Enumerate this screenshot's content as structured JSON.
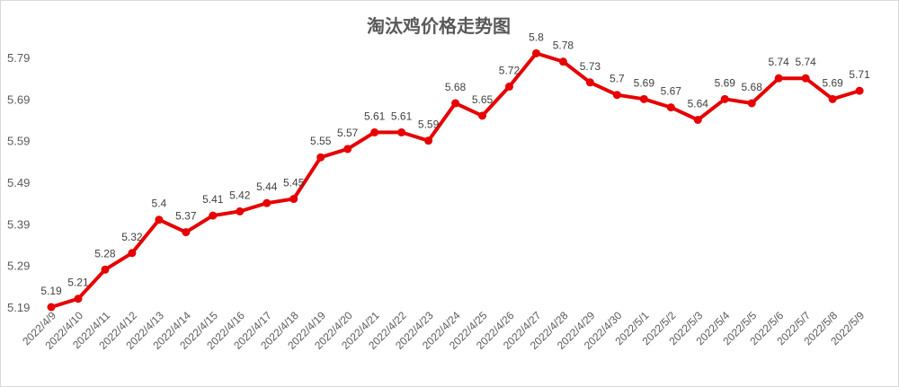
{
  "chart_data": {
    "type": "line",
    "title": "淘汰鸡价格走势图",
    "xlabel": "",
    "ylabel": "",
    "ylim": [
      5.19,
      5.79
    ],
    "yticks": [
      "5.19",
      "5.29",
      "5.39",
      "5.49",
      "5.59",
      "5.69",
      "5.79"
    ],
    "grid": false,
    "legend": "none",
    "line_color": "#e60000",
    "categories": [
      "2022/4/9",
      "2022/4/10",
      "2022/4/11",
      "2022/4/12",
      "2022/4/13",
      "2022/4/14",
      "2022/4/15",
      "2022/4/16",
      "2022/4/17",
      "2022/4/18",
      "2022/4/19",
      "2022/4/20",
      "2022/4/21",
      "2022/4/22",
      "2022/4/23",
      "2022/4/24",
      "2022/4/25",
      "2022/4/26",
      "2022/4/27",
      "2022/4/28",
      "2022/4/29",
      "2022/4/30",
      "2022/5/1",
      "2022/5/2",
      "2022/5/3",
      "2022/5/4",
      "2022/5/5",
      "2022/5/6",
      "2022/5/7",
      "2022/5/8",
      "2022/5/9"
    ],
    "values": [
      5.19,
      5.21,
      5.28,
      5.32,
      5.4,
      5.37,
      5.41,
      5.42,
      5.44,
      5.45,
      5.55,
      5.57,
      5.61,
      5.61,
      5.59,
      5.68,
      5.65,
      5.72,
      5.8,
      5.78,
      5.73,
      5.7,
      5.69,
      5.67,
      5.64,
      5.69,
      5.68,
      5.74,
      5.74,
      5.69,
      5.71
    ]
  }
}
